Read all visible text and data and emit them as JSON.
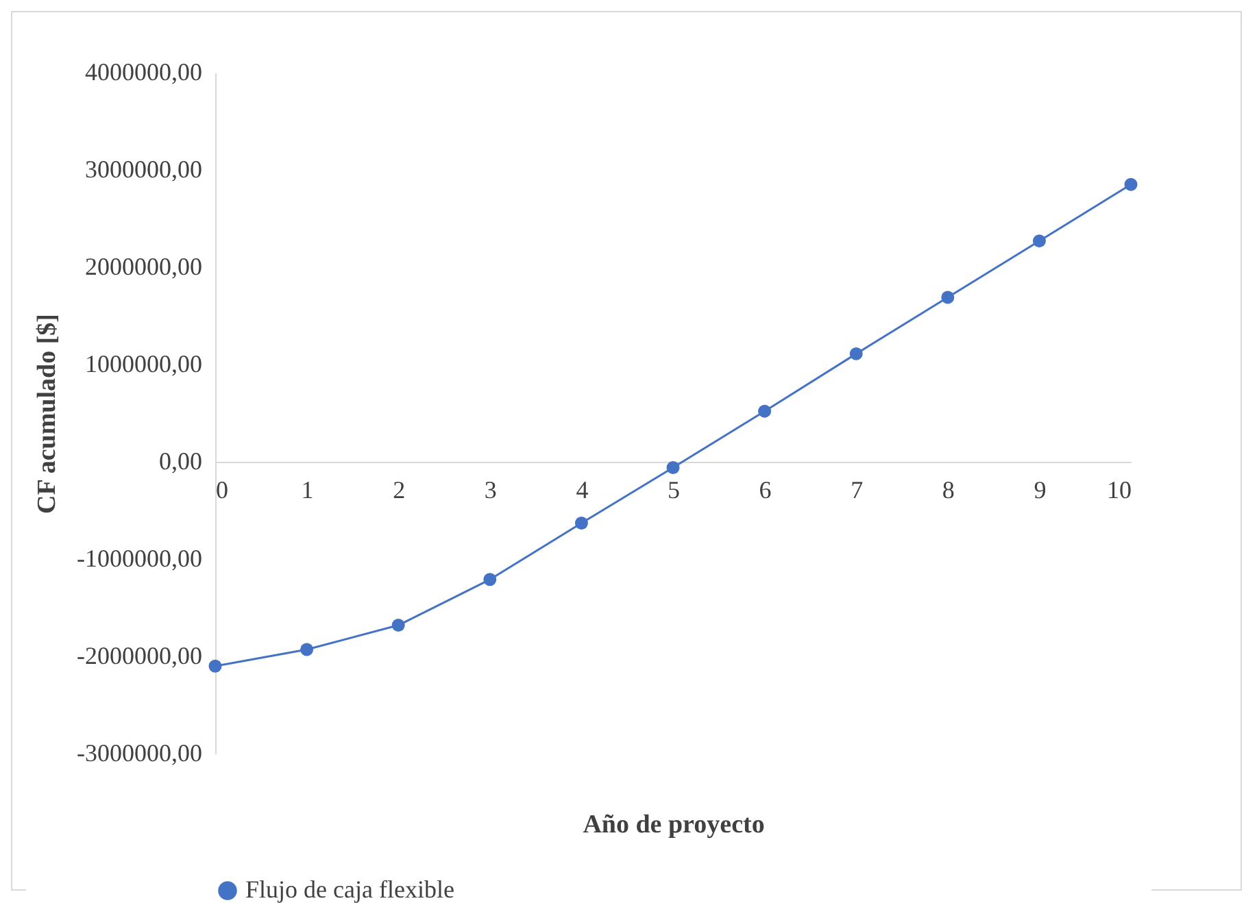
{
  "chart_data": {
    "type": "line",
    "xlabel": "Año de proyecto",
    "ylabel": "CF acumulado [$]",
    "x": [
      0,
      1,
      2,
      3,
      4,
      5,
      6,
      7,
      8,
      9,
      10
    ],
    "series": [
      {
        "name": "Flujo de caja flexible",
        "color": "#4472c4",
        "values": [
          -2100000,
          -1930000,
          -1680000,
          -1210000,
          -630000,
          -60000,
          520000,
          1110000,
          1690000,
          2270000,
          2850000
        ]
      }
    ],
    "xlim": [
      0,
      10
    ],
    "xticks": [
      0,
      1,
      2,
      3,
      4,
      5,
      6,
      7,
      8,
      9,
      10
    ],
    "ylim": [
      -3000000,
      4000000
    ],
    "yticks": [
      {
        "value": -3000000,
        "label": "-3000000,00"
      },
      {
        "value": -2000000,
        "label": "-2000000,00"
      },
      {
        "value": -1000000,
        "label": "-1000000,00"
      },
      {
        "value": 0,
        "label": "0,00"
      },
      {
        "value": 1000000,
        "label": "1000000,00"
      },
      {
        "value": 2000000,
        "label": "2000000,00"
      },
      {
        "value": 3000000,
        "label": "3000000,00"
      },
      {
        "value": 4000000,
        "label": "4000000,00"
      }
    ],
    "grid": false,
    "legend": "bottom",
    "marker": "circle",
    "line_style": "solid"
  }
}
